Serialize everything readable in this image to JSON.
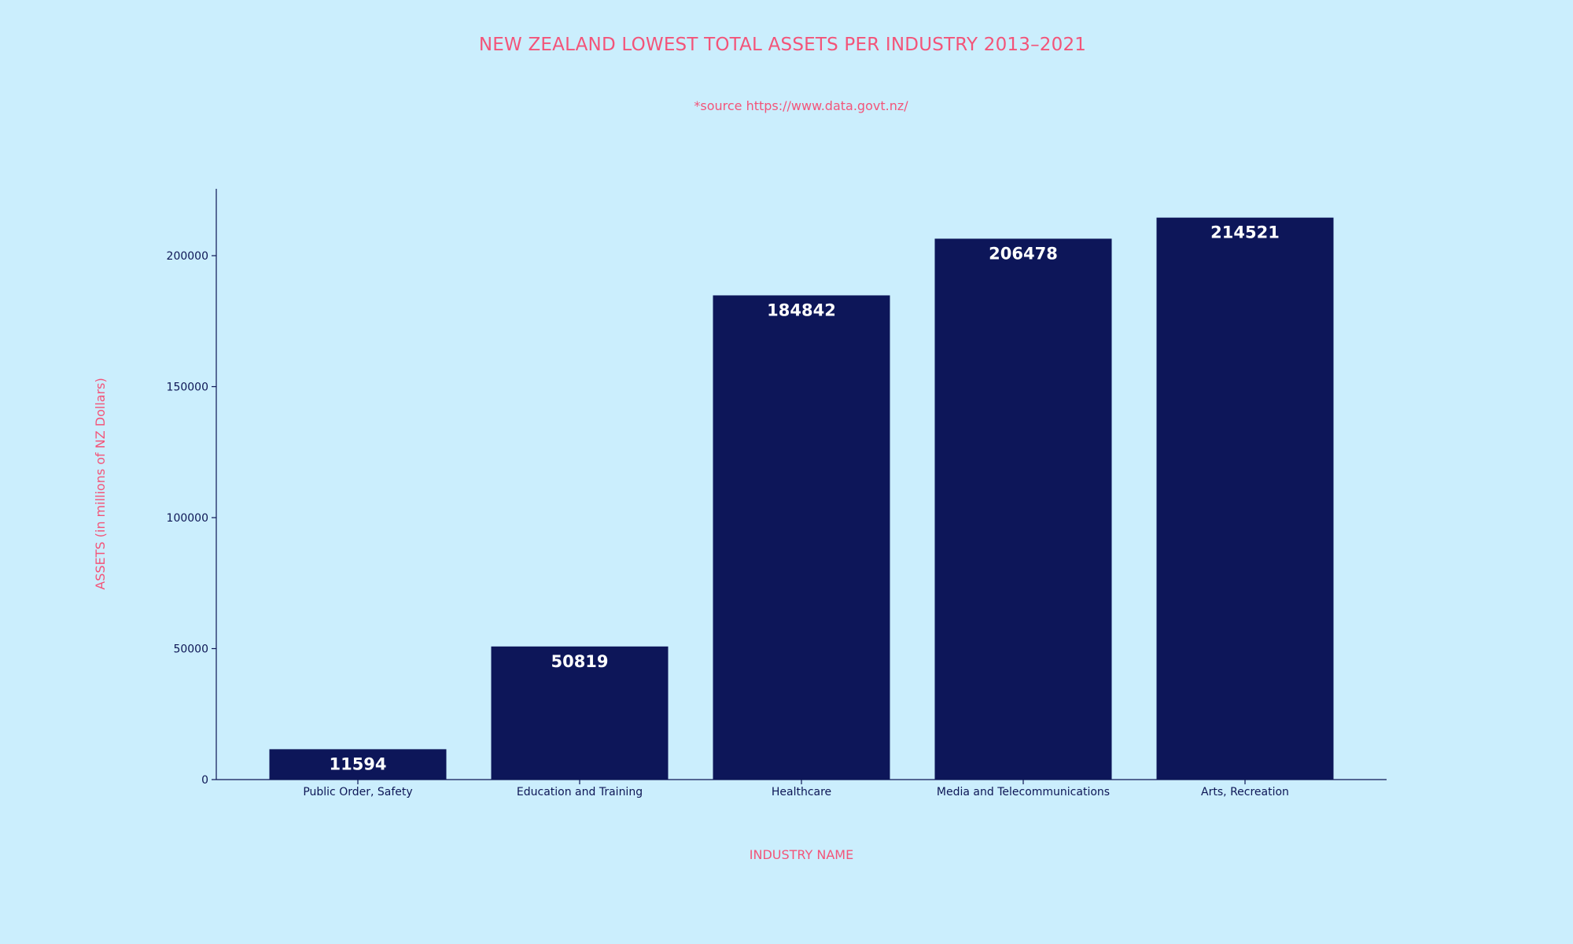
{
  "chart_data": {
    "type": "bar",
    "title": "NEW ZEALAND LOWEST TOTAL ASSETS PER INDUSTRY 2013–2021",
    "subtitle": "*source https://www.data.govt.nz/",
    "xlabel": "INDUSTRY NAME",
    "ylabel": "ASSETS (in millions of NZ Dollars)",
    "categories": [
      "Public Order, Safety",
      "Education and Training",
      "Healthcare",
      "Media and Telecommunications",
      "Arts, Recreation"
    ],
    "values": [
      11594,
      50819,
      184842,
      206478,
      214521
    ],
    "data_labels": [
      "11594",
      "50819",
      "184842",
      "206478",
      "214521"
    ],
    "yticks": [
      0,
      50000,
      100000,
      150000,
      200000
    ],
    "ytick_labels": [
      "0",
      "50000",
      "100000",
      "150000",
      "200000"
    ],
    "ylim": [
      0,
      225000
    ],
    "grid": false,
    "legend": "none",
    "colors": {
      "background": "#cbeefd",
      "bar": "#0d1659",
      "accent": "#f35479",
      "axis": "#0d1655",
      "data_label": "#ffffff"
    }
  }
}
